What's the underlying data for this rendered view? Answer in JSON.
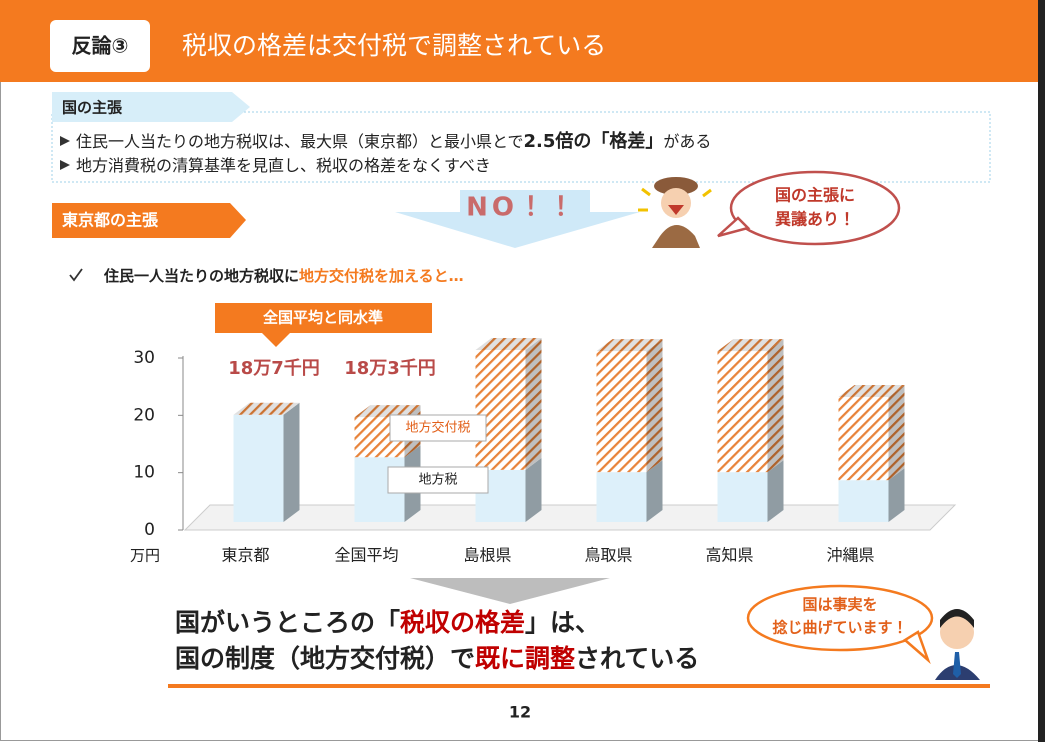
{
  "header": {
    "tag": "反論③",
    "title": "税収の格差は交付税で調整されている"
  },
  "state_claim": {
    "label": "国の主張",
    "bullets": [
      [
        "住民一人当たりの地方税収は、最大県（東京都）と最小県とで",
        "2.5倍の「格差」",
        "がある"
      ],
      [
        "地方消費税の清算基準を見直し、税収の格差をなくすべき"
      ]
    ]
  },
  "objection": {
    "no": "NO！！",
    "bubble": [
      "国の主張に",
      "異議あり！"
    ]
  },
  "tokyo_claim": {
    "label": "東京都の主張",
    "point": [
      "住民一人当たりの地方税収に",
      "地方交付税を加えると…"
    ]
  },
  "chart_data": {
    "type": "bar",
    "stacked": true,
    "categories": [
      "東京都",
      "全国平均",
      "島根県",
      "鳥取県",
      "高知県",
      "沖縄県"
    ],
    "series": [
      {
        "name": "地方税",
        "color": "#ddf0fa",
        "values": [
          18.7,
          11.3,
          9.1,
          8.7,
          8.7,
          7.3
        ]
      },
      {
        "name": "地方交付税",
        "color": "#e8833a",
        "hatch": true,
        "values": [
          0,
          7.0,
          20.9,
          21.1,
          21.1,
          14.5
        ]
      }
    ],
    "ylim": [
      0,
      30
    ],
    "yticks": [
      0,
      10,
      20,
      30
    ],
    "y_unit": "万円",
    "callout": "全国平均と同水準",
    "annotations": [
      "18万7千円",
      "18万3千円"
    ]
  },
  "conclusion": {
    "lines": [
      [
        "国がいうところの「",
        "税収の格差",
        "」は、"
      ],
      [
        "国の制度（地方交付税）で",
        "既に調整",
        "されている"
      ]
    ],
    "bubble": [
      "国は事実を",
      "捻じ曲げています！"
    ]
  },
  "page_number": "12"
}
